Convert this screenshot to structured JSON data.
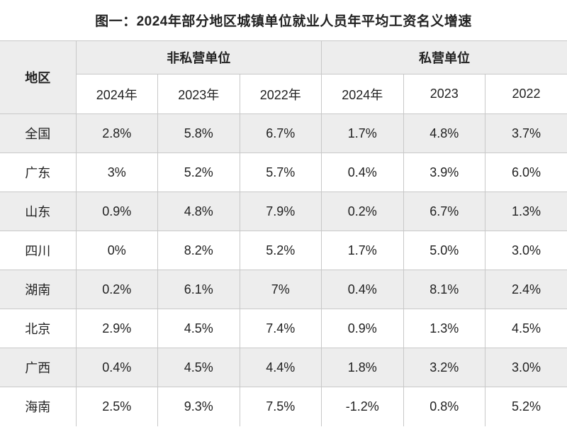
{
  "page_title": "图一：2024年部分地区城镇单位就业人员年平均工资名义增速",
  "colors": {
    "header_bg": "#ededed",
    "row_alt_bg": "#ededed",
    "row_bg": "#ffffff",
    "border": "#c8c8c8",
    "text": "#222222"
  },
  "chart_data": {
    "type": "table",
    "title": "图一：2024年部分地区城镇单位就业人员年平均工资名义增速",
    "region_column_header": "地区",
    "groups": [
      {
        "label": "非私营单位",
        "columns": [
          "2024年",
          "2023年",
          "2022年"
        ]
      },
      {
        "label": "私营单位",
        "columns": [
          "2024年",
          "2023",
          "2022"
        ]
      }
    ],
    "rows": [
      {
        "region": "全国",
        "values": [
          "2.8%",
          "5.8%",
          "6.7%",
          "1.7%",
          "4.8%",
          "3.7%"
        ]
      },
      {
        "region": "广东",
        "values": [
          "3%",
          "5.2%",
          "5.7%",
          "0.4%",
          "3.9%",
          "6.0%"
        ]
      },
      {
        "region": "山东",
        "values": [
          "0.9%",
          "4.8%",
          "7.9%",
          "0.2%",
          "6.7%",
          "1.3%"
        ]
      },
      {
        "region": "四川",
        "values": [
          "0%",
          "8.2%",
          "5.2%",
          "1.7%",
          "5.0%",
          "3.0%"
        ]
      },
      {
        "region": "湖南",
        "values": [
          "0.2%",
          "6.1%",
          "7%",
          "0.4%",
          "8.1%",
          "2.4%"
        ]
      },
      {
        "region": "北京",
        "values": [
          "2.9%",
          "4.5%",
          "7.4%",
          "0.9%",
          "1.3%",
          "4.5%"
        ]
      },
      {
        "region": "广西",
        "values": [
          "0.4%",
          "4.5%",
          "4.4%",
          "1.8%",
          "3.2%",
          "3.0%"
        ]
      },
      {
        "region": "海南",
        "values": [
          "2.5%",
          "9.3%",
          "7.5%",
          "-1.2%",
          "0.8%",
          "5.2%"
        ]
      }
    ]
  }
}
